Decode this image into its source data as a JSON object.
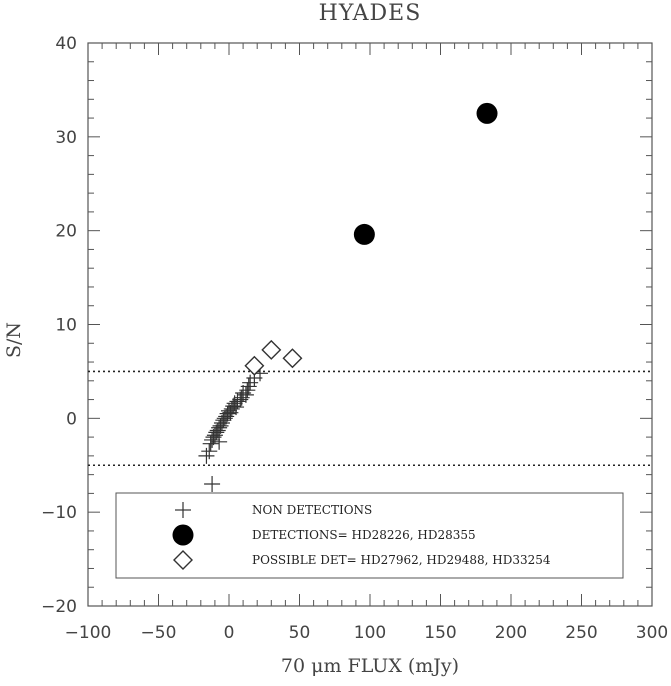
{
  "chart_data": {
    "type": "scatter",
    "title": "HYADES",
    "xlabel": "70 μm FLUX (mJy)",
    "ylabel": "S/N",
    "xlim": [
      -100,
      300
    ],
    "ylim": [
      -20,
      40
    ],
    "xticks": [
      -100,
      -50,
      0,
      50,
      100,
      150,
      200,
      250,
      300
    ],
    "yticks": [
      -20,
      -10,
      0,
      10,
      20,
      30,
      40
    ],
    "xtick_labels": [
      "−100",
      "−50",
      "0",
      "50",
      "100",
      "150",
      "200",
      "250",
      "300"
    ],
    "ytick_labels": [
      "−20",
      "−10",
      "0",
      "10",
      "20",
      "30",
      "40"
    ],
    "grid": false,
    "reference_lines": [
      {
        "axis": "y",
        "value": 5,
        "style": "dotted"
      },
      {
        "axis": "y",
        "value": -5,
        "style": "dotted"
      }
    ],
    "legend_position": "bottom",
    "series": [
      {
        "name": "NON DETECTIONS",
        "marker": "plus",
        "x": [
          -16,
          -14,
          -13,
          -12,
          -11,
          -10,
          -9,
          -8,
          -7,
          -6,
          -5,
          -4,
          -3,
          -2,
          -1,
          0,
          1,
          2,
          3,
          4,
          5,
          6,
          8,
          9,
          10,
          12,
          13,
          14,
          15,
          18,
          22,
          -7
        ],
        "y": [
          -4.0,
          -3.5,
          -2.7,
          -2.3,
          -2.0,
          -1.8,
          -1.5,
          -1.3,
          -1.0,
          -0.8,
          -0.5,
          -0.2,
          0.0,
          0.2,
          0.5,
          0.8,
          0.6,
          1.0,
          1.3,
          1.6,
          1.2,
          1.8,
          2.0,
          2.2,
          2.7,
          2.5,
          3.0,
          3.4,
          3.8,
          4.3,
          4.8,
          -2.5
        ]
      },
      {
        "name": "",
        "marker": "plus",
        "x": [
          -12
        ],
        "y": [
          -7.0
        ]
      },
      {
        "name": "DETECTIONS= HD28226, HD28355",
        "marker": "filled-circle",
        "x": [
          96,
          183
        ],
        "y": [
          19.6,
          32.5
        ]
      },
      {
        "name": "POSSIBLE DET= HD27962, HD29488, HD33254",
        "marker": "open-diamond",
        "x": [
          18,
          30,
          45
        ],
        "y": [
          5.6,
          7.3,
          6.4
        ]
      }
    ]
  }
}
